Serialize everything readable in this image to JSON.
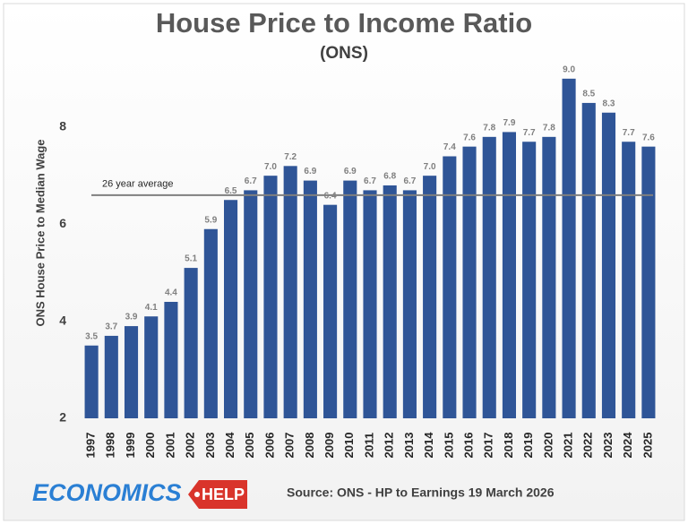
{
  "chart_data": {
    "type": "bar",
    "title": "House Price to Income Ratio",
    "subtitle": "(ONS)",
    "y_label": "ONS House Price to Median Wage",
    "categories": [
      "1997",
      "1998",
      "1999",
      "2000",
      "2001",
      "2002",
      "2003",
      "2004",
      "2005",
      "2006",
      "2007",
      "2008",
      "2009",
      "2010",
      "2011",
      "2012",
      "2013",
      "2014",
      "2015",
      "2016",
      "2017",
      "2018",
      "2019",
      "2020",
      "2021",
      "2022",
      "2023",
      "2024",
      "2025"
    ],
    "values": [
      3.5,
      3.7,
      3.9,
      4.1,
      4.4,
      5.1,
      5.9,
      6.5,
      6.7,
      7.0,
      7.2,
      6.9,
      6.4,
      6.9,
      6.7,
      6.8,
      6.7,
      7.0,
      7.4,
      7.6,
      7.8,
      7.9,
      7.7,
      7.8,
      9.0,
      8.5,
      8.3,
      7.7,
      7.6
    ],
    "value_labels": [
      "3.5",
      "3.7",
      "3.9",
      "4.1",
      "4.4",
      "5.1",
      "5.9",
      "6.5",
      "6.7",
      "7.0",
      "7.2",
      "6.9",
      "6.4",
      "6.9",
      "6.7",
      "6.8",
      "6.7",
      "7.0",
      "7.4",
      "7.6",
      "7.8",
      "7.9",
      "7.7",
      "7.8",
      "9.0",
      "8.5",
      "8.3",
      "7.7",
      "7.6"
    ],
    "color": "#2f5597",
    "ylim": [
      2,
      9.2
    ],
    "yticks": [
      2,
      4,
      6,
      8
    ],
    "grid": false,
    "average": {
      "value": 6.6,
      "label": "26 year average"
    },
    "source": "Source: ONS - HP to Earnings 19 March 2026"
  },
  "logo": {
    "word": "ECONOMICS",
    "tag": "HELP"
  }
}
